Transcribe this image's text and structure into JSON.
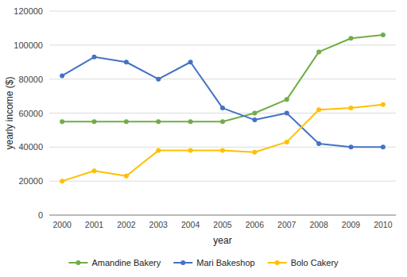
{
  "chart_data": {
    "type": "line",
    "x": [
      2000,
      2001,
      2002,
      2003,
      2004,
      2005,
      2006,
      2007,
      2008,
      2009,
      2010
    ],
    "series": [
      {
        "name": "Amandine Bakery",
        "color": "#70ad47",
        "marker": "circle",
        "values": [
          55000,
          55000,
          55000,
          55000,
          55000,
          55000,
          60000,
          68000,
          96000,
          104000,
          106000
        ]
      },
      {
        "name": "Mari Bakeshop",
        "color": "#4472c4",
        "marker": "circle",
        "values": [
          82000,
          93000,
          90000,
          80000,
          90000,
          63000,
          56000,
          60000,
          42000,
          40000,
          40000
        ]
      },
      {
        "name": "Bolo Cakery",
        "color": "#ffc000",
        "marker": "circle",
        "values": [
          20000,
          26000,
          23000,
          38000,
          38000,
          38000,
          37000,
          43000,
          62000,
          63000,
          65000
        ]
      }
    ],
    "xlabel": "year",
    "ylabel": "yearly income ($)",
    "xlim": [
      1999.6,
      2010.4
    ],
    "xticks": [
      2000,
      2001,
      2002,
      2003,
      2004,
      2005,
      2006,
      2007,
      2008,
      2009,
      2010
    ],
    "ylim": [
      0,
      120000
    ],
    "yticks": [
      0,
      20000,
      40000,
      60000,
      80000,
      100000,
      120000
    ],
    "grid": true,
    "legend": "bottom"
  }
}
